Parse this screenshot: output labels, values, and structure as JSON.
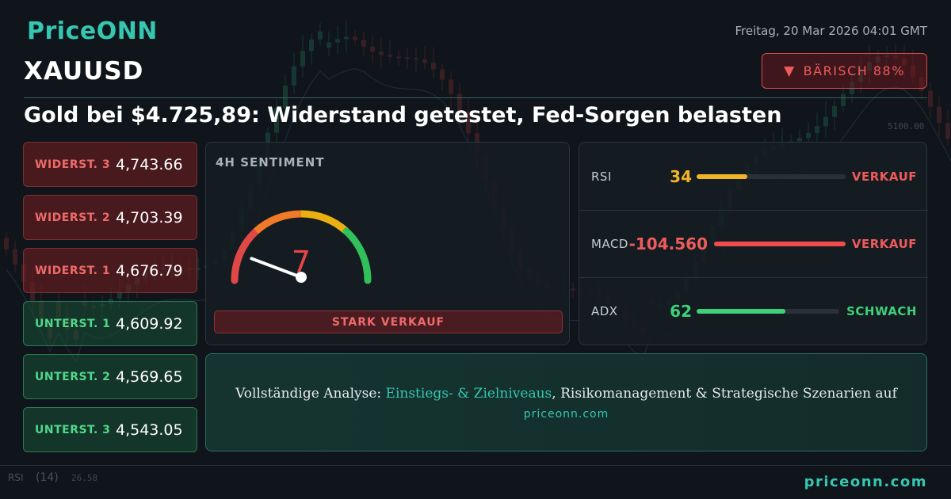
{
  "brand": {
    "logo": "PriceONN",
    "footer_url": "priceonn.com"
  },
  "date": "Freitag, 20 Mar 2026 04:01 GMT",
  "symbol": "XAUUSD",
  "bias": {
    "icon": "triangle-down-icon",
    "label": "BÄRISCH 88%",
    "color": "#ef5b5b"
  },
  "headline": "Gold bei $4.725,89: Widerstand getestet, Fed-Sorgen belasten",
  "levels": [
    {
      "label": "WIDERST. 3",
      "value": "4,743.66",
      "kind": "resistance"
    },
    {
      "label": "WIDERST. 2",
      "value": "4,703.39",
      "kind": "resistance"
    },
    {
      "label": "WIDERST. 1",
      "value": "4,676.79",
      "kind": "resistance"
    },
    {
      "label": "UNTERST. 1",
      "value": "4,609.92",
      "kind": "support"
    },
    {
      "label": "UNTERST. 2",
      "value": "4,569.65",
      "kind": "support"
    },
    {
      "label": "UNTERST. 3",
      "value": "4,543.05",
      "kind": "support"
    }
  ],
  "sentiment": {
    "title": "4H SENTIMENT",
    "score": "7",
    "score_max": 100,
    "label": "STARK VERKAUF"
  },
  "indicators": [
    {
      "name": "RSI",
      "value": "34",
      "fraction": 0.34,
      "signal": "VERKAUF",
      "value_color": "#f0b429",
      "bar_color": "#f0b429",
      "signal_color": "#ef5b5b"
    },
    {
      "name": "MACD",
      "value": "-104.560",
      "fraction": 1.0,
      "signal": "VERKAUF",
      "value_color": "#ef5b5b",
      "bar_color": "#ef4c4c",
      "signal_color": "#ef5b5b"
    },
    {
      "name": "ADX",
      "value": "62",
      "fraction": 0.62,
      "signal": "SCHWACH",
      "value_color": "#3fd07a",
      "bar_color": "#3fd07a",
      "signal_color": "#3fd07a"
    }
  ],
  "cta": {
    "prefix": "Vollständige Analyse: ",
    "highlight": "Einstiegs- & Zielniveaus",
    "suffix": ", Risikomanagement & Strategische Szenarien auf",
    "url": "priceonn.com"
  },
  "background_chart": {
    "price_label": "5100.00",
    "lower_label": "RSI",
    "lower_period": "(14)",
    "lower_values": "26.58"
  }
}
